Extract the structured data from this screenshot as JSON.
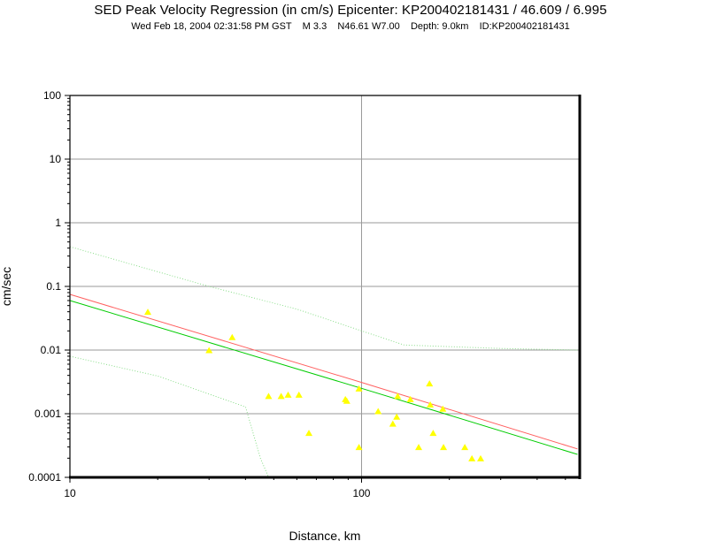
{
  "title": "SED Peak Velocity Regression (in cm/s) Epicenter: KP200402181431 / 46.609 / 6.995",
  "subtitle": "Wed Feb 18, 2004 02:31:58 PM GST    M 3.3    N46.61 W7.00    Depth: 9.0km    ID:KP200402181431",
  "chart_data": {
    "type": "scatter",
    "title": "SED Peak Velocity Regression (in cm/s) Epicenter: KP200402181431 / 46.609 / 6.995",
    "xlabel": "Distance, km",
    "ylabel": "cm/sec",
    "xscale": "log",
    "yscale": "log",
    "xlim": [
      10,
      560
    ],
    "ylim": [
      0.0001,
      100
    ],
    "x_tick_labels": [
      "10",
      "100"
    ],
    "x_ticks": [
      10,
      100
    ],
    "y_tick_labels": [
      "0.0001",
      "0.001",
      "0.01",
      "0.1",
      "1",
      "10",
      "100"
    ],
    "y_ticks": [
      0.0001,
      0.001,
      0.01,
      0.1,
      1,
      10,
      100
    ],
    "grid": true,
    "series": [
      {
        "kind": "points",
        "color": "#ffff00",
        "marker": "triangle",
        "points": [
          [
            18.5,
            0.04
          ],
          [
            30,
            0.01
          ],
          [
            36,
            0.016
          ],
          [
            48,
            0.0019
          ],
          [
            53,
            0.0019
          ],
          [
            56,
            0.002
          ],
          [
            61,
            0.002
          ],
          [
            66,
            0.0005
          ],
          [
            88,
            0.0017
          ],
          [
            89,
            0.0016
          ],
          [
            98,
            0.0025
          ],
          [
            98,
            0.0003
          ],
          [
            114,
            0.0011
          ],
          [
            128,
            0.0007
          ],
          [
            132,
            0.0009
          ],
          [
            133,
            0.0019
          ],
          [
            147,
            0.0017
          ],
          [
            157,
            0.0003
          ],
          [
            171,
            0.003
          ],
          [
            172,
            0.0014
          ],
          [
            176,
            0.0005
          ],
          [
            190,
            0.0012
          ],
          [
            191,
            0.0003
          ],
          [
            226,
            0.0003
          ],
          [
            239,
            0.0002
          ],
          [
            256,
            0.0002
          ]
        ]
      },
      {
        "kind": "line",
        "color": "#ff6060",
        "points": [
          [
            10,
            0.075
          ],
          [
            100,
            0.0031
          ],
          [
            550,
            0.00028
          ]
        ]
      },
      {
        "kind": "line",
        "color": "#00cc00",
        "points": [
          [
            10,
            0.06
          ],
          [
            100,
            0.0025
          ],
          [
            550,
            0.00023
          ]
        ]
      },
      {
        "kind": "dotted",
        "color": "#88dd88",
        "points": [
          [
            10,
            0.42
          ],
          [
            30,
            0.1
          ],
          [
            60,
            0.044
          ],
          [
            100,
            0.02
          ],
          [
            140,
            0.012
          ],
          [
            300,
            0.0106
          ],
          [
            550,
            0.01
          ]
        ]
      },
      {
        "kind": "dotted",
        "color": "#88dd88",
        "points": [
          [
            10,
            0.008
          ],
          [
            20,
            0.0039
          ],
          [
            40,
            0.00128
          ],
          [
            45,
            0.0002
          ],
          [
            48,
            0.0001
          ]
        ]
      }
    ]
  }
}
